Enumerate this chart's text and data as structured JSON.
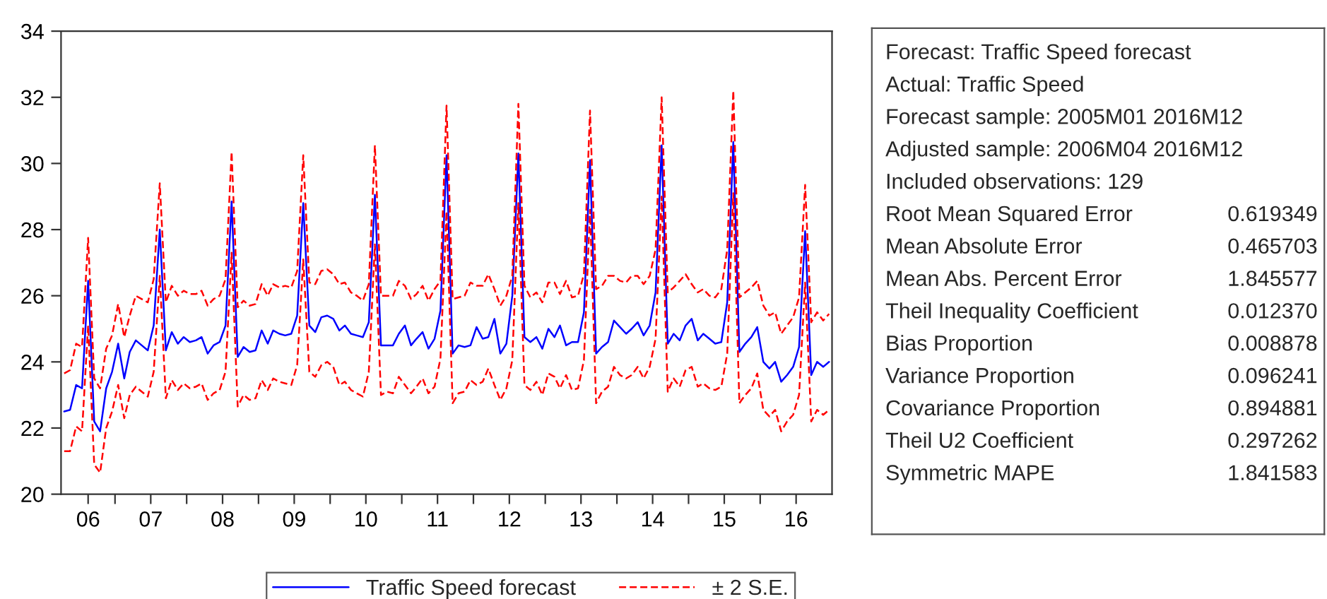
{
  "chart_data": [
    {
      "type": "line",
      "x": [
        "2006-04",
        "2006-05",
        "2006-06",
        "2006-07",
        "2006-08",
        "2006-09",
        "2006-10",
        "2006-11",
        "2006-12",
        "2007-01",
        "2007-02",
        "2007-03",
        "2007-04",
        "2007-05",
        "2007-06",
        "2007-07",
        "2007-08",
        "2007-09",
        "2007-10",
        "2007-11",
        "2007-12",
        "2008-01",
        "2008-02",
        "2008-03",
        "2008-04",
        "2008-05",
        "2008-06",
        "2008-07",
        "2008-08",
        "2008-09",
        "2008-10",
        "2008-11",
        "2008-12",
        "2009-01",
        "2009-02",
        "2009-03",
        "2009-04",
        "2009-05",
        "2009-06",
        "2009-07",
        "2009-08",
        "2009-09",
        "2009-10",
        "2009-11",
        "2009-12",
        "2010-01",
        "2010-02",
        "2010-03",
        "2010-04",
        "2010-05",
        "2010-06",
        "2010-07",
        "2010-08",
        "2010-09",
        "2010-10",
        "2010-11",
        "2010-12",
        "2011-01",
        "2011-02",
        "2011-03",
        "2011-04",
        "2011-05",
        "2011-06",
        "2011-07",
        "2011-08",
        "2011-09",
        "2011-10",
        "2011-11",
        "2011-12",
        "2012-01",
        "2012-02",
        "2012-03",
        "2012-04",
        "2012-05",
        "2012-06",
        "2012-07",
        "2012-08",
        "2012-09",
        "2012-10",
        "2012-11",
        "2012-12",
        "2013-01",
        "2013-02",
        "2013-03",
        "2013-04",
        "2013-05",
        "2013-06",
        "2013-07",
        "2013-08",
        "2013-09",
        "2013-10",
        "2013-11",
        "2013-12",
        "2014-01",
        "2014-02",
        "2014-03",
        "2014-04",
        "2014-05",
        "2014-06",
        "2014-07",
        "2014-08",
        "2014-09",
        "2014-10",
        "2014-11",
        "2014-12",
        "2015-01",
        "2015-02",
        "2015-03",
        "2015-04",
        "2015-05",
        "2015-06",
        "2015-07",
        "2015-08",
        "2015-09",
        "2015-10",
        "2015-11",
        "2015-12",
        "2016-01",
        "2016-02",
        "2016-03",
        "2016-04",
        "2016-05",
        "2016-06",
        "2016-07",
        "2016-08",
        "2016-09",
        "2016-10",
        "2016-11",
        "2016-12"
      ],
      "series": [
        {
          "name": "Traffic Speed forecast",
          "color": "#0000ff",
          "line_style": "solid",
          "values": [
            22.5,
            22.55,
            23.3,
            23.2,
            26.45,
            22.2,
            21.9,
            23.2,
            23.7,
            24.55,
            23.5,
            24.3,
            24.65,
            24.5,
            24.35,
            25.1,
            28.0,
            24.35,
            24.9,
            24.55,
            24.75,
            24.6,
            24.65,
            24.75,
            24.25,
            24.5,
            24.6,
            25.1,
            28.85,
            24.15,
            24.45,
            24.3,
            24.35,
            24.95,
            24.55,
            24.95,
            24.85,
            24.8,
            24.85,
            25.4,
            28.8,
            25.1,
            24.9,
            25.35,
            25.4,
            25.3,
            24.95,
            25.1,
            24.85,
            24.8,
            24.75,
            25.2,
            29.05,
            24.5,
            24.5,
            24.5,
            24.85,
            25.1,
            24.5,
            24.7,
            24.9,
            24.4,
            24.7,
            25.55,
            30.25,
            24.25,
            24.5,
            24.45,
            24.5,
            25.05,
            24.7,
            24.75,
            25.3,
            24.25,
            24.55,
            26.0,
            30.3,
            24.75,
            24.6,
            24.75,
            24.4,
            25.0,
            24.75,
            25.1,
            24.5,
            24.6,
            24.6,
            25.5,
            30.1,
            24.25,
            24.45,
            24.6,
            25.25,
            25.05,
            24.85,
            25.0,
            25.2,
            24.8,
            25.1,
            26.1,
            30.55,
            24.55,
            24.85,
            24.65,
            25.1,
            25.3,
            24.65,
            24.85,
            24.7,
            24.55,
            24.6,
            25.8,
            30.65,
            24.3,
            24.55,
            24.75,
            25.05,
            24.0,
            23.8,
            24.0,
            23.4,
            23.6,
            23.85,
            24.45,
            27.95,
            23.6,
            24.0,
            23.85,
            24.0
          ]
        },
        {
          "name": "± 2 S.E.",
          "color": "#ff0000",
          "line_style": "dashed",
          "values": [
            23.65,
            23.75,
            24.55,
            24.45,
            27.75,
            23.5,
            23.2,
            24.4,
            24.8,
            25.75,
            24.75,
            25.4,
            26.0,
            25.9,
            25.8,
            26.5,
            29.4,
            25.8,
            26.3,
            26.0,
            26.15,
            26.05,
            26.05,
            26.15,
            25.7,
            25.9,
            26.0,
            26.5,
            30.35,
            25.65,
            25.85,
            25.7,
            25.75,
            26.35,
            26.0,
            26.35,
            26.25,
            26.3,
            26.25,
            26.75,
            30.25,
            26.4,
            26.35,
            26.75,
            26.8,
            26.65,
            26.35,
            26.4,
            26.1,
            26.0,
            25.85,
            26.35,
            30.55,
            26.0,
            26.0,
            26.0,
            26.45,
            26.3,
            25.9,
            26.05,
            26.3,
            25.85,
            26.2,
            26.45,
            31.75,
            25.9,
            25.95,
            26.0,
            26.4,
            26.3,
            26.3,
            26.65,
            26.2,
            25.7,
            26.0,
            26.6,
            31.8,
            26.3,
            25.95,
            26.1,
            25.8,
            26.4,
            26.4,
            26.05,
            26.45,
            25.95,
            26.0,
            26.65,
            31.6,
            26.2,
            26.3,
            26.6,
            26.6,
            26.45,
            26.4,
            26.6,
            26.6,
            26.35,
            26.6,
            27.4,
            32.0,
            26.1,
            26.25,
            26.45,
            26.65,
            26.35,
            26.1,
            26.2,
            26.0,
            25.95,
            26.2,
            27.4,
            32.2,
            25.95,
            26.1,
            26.25,
            26.45,
            25.7,
            25.4,
            25.5,
            24.85,
            25.1,
            25.35,
            25.95,
            29.35,
            25.2,
            25.5,
            25.25,
            25.45
          ]
        },
        {
          "color": "#ff0000",
          "line_style": "dashed",
          "values": [
            21.3,
            21.3,
            22.05,
            21.9,
            25.1,
            20.9,
            20.65,
            22.0,
            22.5,
            23.3,
            22.3,
            23.0,
            23.25,
            23.1,
            22.95,
            23.7,
            26.6,
            22.9,
            23.45,
            23.15,
            23.35,
            23.2,
            23.25,
            23.35,
            22.85,
            23.05,
            23.15,
            23.7,
            27.3,
            22.65,
            23.0,
            22.85,
            22.9,
            23.45,
            23.15,
            23.5,
            23.4,
            23.35,
            23.3,
            23.9,
            27.1,
            23.7,
            23.55,
            23.9,
            24.0,
            23.85,
            23.3,
            23.4,
            23.15,
            23.05,
            22.95,
            23.7,
            27.55,
            23.0,
            23.1,
            23.05,
            23.55,
            23.3,
            23.05,
            23.25,
            23.5,
            23.05,
            23.25,
            24.1,
            28.55,
            22.75,
            23.05,
            23.1,
            23.45,
            23.3,
            23.4,
            23.8,
            23.3,
            22.85,
            23.2,
            24.05,
            28.8,
            23.3,
            23.15,
            23.4,
            23.0,
            23.65,
            23.55,
            23.2,
            23.6,
            23.15,
            23.2,
            24.05,
            28.6,
            22.75,
            23.1,
            23.25,
            23.85,
            23.6,
            23.5,
            23.6,
            23.85,
            23.5,
            23.85,
            24.7,
            29.0,
            23.1,
            23.5,
            23.25,
            23.75,
            23.85,
            23.25,
            23.35,
            23.2,
            23.15,
            23.25,
            24.25,
            29.1,
            22.75,
            23.0,
            23.2,
            23.65,
            22.55,
            22.35,
            22.55,
            21.9,
            22.2,
            22.4,
            23.0,
            26.4,
            22.2,
            22.55,
            22.4,
            22.55
          ]
        }
      ],
      "xlim": [
        "2006-03-16",
        "2016-12-16"
      ],
      "xticks": [
        {
          "value": "2006-08-01",
          "label": "06"
        },
        {
          "value": "2006-12-16",
          "label": null
        },
        {
          "value": "2007-06-16",
          "label": "07"
        },
        {
          "value": "2007-12-16",
          "label": null
        },
        {
          "value": "2008-06-16",
          "label": "08"
        },
        {
          "value": "2008-12-16",
          "label": null
        },
        {
          "value": "2009-06-16",
          "label": "09"
        },
        {
          "value": "2009-12-16",
          "label": null
        },
        {
          "value": "2010-06-16",
          "label": "10"
        },
        {
          "value": "2010-12-16",
          "label": null
        },
        {
          "value": "2011-06-16",
          "label": "11"
        },
        {
          "value": "2011-12-16",
          "label": null
        },
        {
          "value": "2012-06-16",
          "label": "12"
        },
        {
          "value": "2012-12-16",
          "label": null
        },
        {
          "value": "2013-06-16",
          "label": "13"
        },
        {
          "value": "2013-12-16",
          "label": null
        },
        {
          "value": "2014-06-16",
          "label": "14"
        },
        {
          "value": "2014-12-16",
          "label": null
        },
        {
          "value": "2015-06-16",
          "label": "15"
        },
        {
          "value": "2015-12-16",
          "label": null
        },
        {
          "value": "2016-06-16",
          "label": "16"
        }
      ],
      "ylim": [
        20,
        34
      ],
      "yticks": [
        20,
        22,
        24,
        26,
        28,
        30,
        32,
        34
      ],
      "legend": "bottom"
    },
    {
      "type": "other",
      "annotations": [
        "Forecast: Traffic Speed forecast",
        "Actual: Traffic Speed",
        "Forecast sample: 2005M01 2016M12",
        "Adjusted sample: 2006M04 2016M12",
        "Included observations: 129"
      ],
      "categories": [
        "Root Mean Squared Error",
        "Mean Absolute Error",
        "Mean Abs. Percent Error",
        "Theil Inequality Coefficient",
        "Bias Proportion",
        "Variance Proportion",
        "Covariance Proportion",
        "Theil U2 Coefficient",
        "Symmetric MAPE"
      ],
      "value_labels": [
        "0.619349",
        "0.465703",
        "1.845577",
        "0.012370",
        "0.008878",
        "0.096241",
        "0.894881",
        "0.297262",
        "1.841583"
      ]
    }
  ]
}
